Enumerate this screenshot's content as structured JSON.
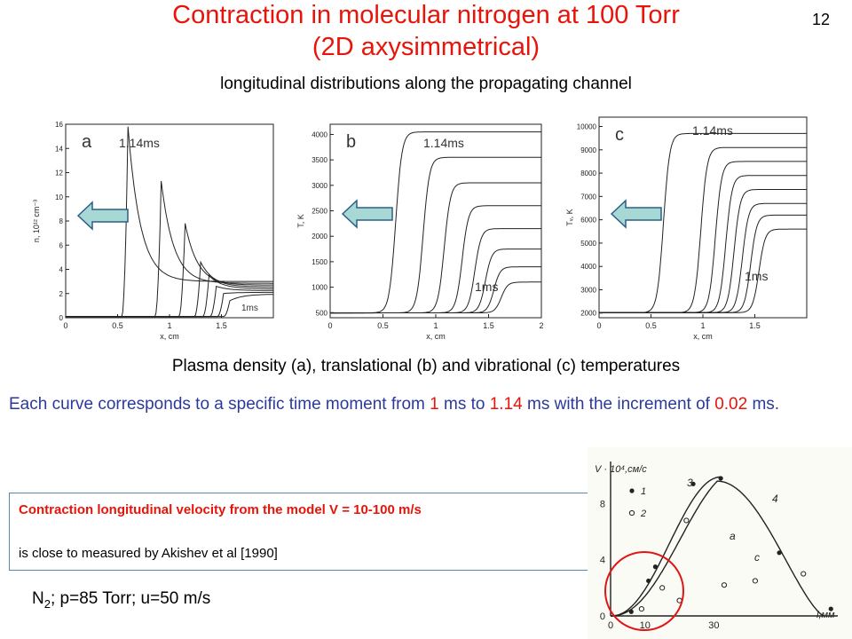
{
  "header": {
    "title_line1": "Contraction in molecular nitrogen at 100 Torr",
    "title_line2": "(2D axysimmetrical)",
    "subtitle": "longitudinal distributions along the propagating channel",
    "slide_number": "12"
  },
  "caption": "Plasma density (a), translational (b) and vibrational (c) temperatures",
  "description": {
    "part1": "Each curve corresponds to a specific time moment from ",
    "t_start": "1",
    "part2": " ms to ",
    "t_end": "1.14",
    "part3": " ms with the increment of ",
    "increment": "0.02",
    "part4": " ms."
  },
  "note_box": {
    "line1": "Contraction longitudinal velocity from the model V = 10-100 m/s",
    "line2": "is close to measured by Akishev et al [1990]"
  },
  "conditions": {
    "species": "N",
    "subscript": "2",
    "rest": "; p=85 Torr; u=50 m/s"
  },
  "chart_data": [
    {
      "type": "line",
      "panel_label": "a",
      "ylabel": "n, 10¹² cm⁻³",
      "xlabel": "x, cm",
      "xlim": [
        0,
        2
      ],
      "ylim": [
        0,
        16
      ],
      "x_ticks": [
        "0",
        "0.5",
        "1",
        "1.5"
      ],
      "y_ticks": [
        "0",
        "2",
        "4",
        "6",
        "8",
        "10",
        "12",
        "14",
        "16"
      ],
      "annotations": [
        "1.14ms",
        "1ms"
      ],
      "series_peaks": [
        {
          "x": 0.6,
          "y": 15.8
        },
        {
          "x": 0.92,
          "y": 11.3
        },
        {
          "x": 1.15,
          "y": 7.8
        },
        {
          "x": 1.3,
          "y": 4.6
        },
        {
          "x": 1.38,
          "y": 3.5
        },
        {
          "x": 1.45,
          "y": 2.6
        },
        {
          "x": 1.52,
          "y": 2.0
        },
        {
          "x": 1.58,
          "y": 1.4
        }
      ]
    },
    {
      "type": "line",
      "panel_label": "b",
      "ylabel": "T, K",
      "xlabel": "x, cm",
      "xlim": [
        0,
        2
      ],
      "ylim": [
        400,
        4200
      ],
      "x_ticks": [
        "0",
        "0.5",
        "1",
        "1.5",
        "2"
      ],
      "y_ticks": [
        "500",
        "1000",
        "1500",
        "2000",
        "2500",
        "3000",
        "3500",
        "4000"
      ],
      "annotations": [
        "1.14ms",
        "1ms"
      ],
      "series_fronts": [
        {
          "x": 0.62,
          "plateau": 4050
        },
        {
          "x": 0.88,
          "plateau": 3550
        },
        {
          "x": 1.08,
          "plateau": 3050
        },
        {
          "x": 1.25,
          "plateau": 2600
        },
        {
          "x": 1.37,
          "plateau": 2150
        },
        {
          "x": 1.47,
          "plateau": 1750
        },
        {
          "x": 1.55,
          "plateau": 1400
        },
        {
          "x": 1.62,
          "plateau": 1100
        }
      ]
    },
    {
      "type": "line",
      "panel_label": "c",
      "ylabel": "Tᵥ, K",
      "xlabel": "x, cm",
      "xlim": [
        0,
        2
      ],
      "ylim": [
        1800,
        10400
      ],
      "x_ticks": [
        "0",
        "0.5",
        "1",
        "1.5"
      ],
      "y_ticks": [
        "2000",
        "3000",
        "4000",
        "5000",
        "6000",
        "7000",
        "8000",
        "9000",
        "10000"
      ],
      "annotations": [
        "1.14ms",
        "1ms"
      ],
      "series_fronts": [
        {
          "x": 0.62,
          "plateau": 9700
        },
        {
          "x": 0.98,
          "plateau": 9100
        },
        {
          "x": 1.12,
          "plateau": 8500
        },
        {
          "x": 1.22,
          "plateau": 7900
        },
        {
          "x": 1.3,
          "plateau": 7300
        },
        {
          "x": 1.38,
          "plateau": 6700
        },
        {
          "x": 1.46,
          "plateau": 6200
        },
        {
          "x": 1.54,
          "plateau": 5600
        }
      ]
    },
    {
      "type": "scatter",
      "ylabel": "V · 10⁴,см/с",
      "xlabel": "l,мм",
      "x_ticks": [
        "0",
        "10",
        "30"
      ],
      "y_ticks": [
        "0",
        "4",
        "8"
      ],
      "legend": [
        "1",
        "2"
      ],
      "curve_labels": [
        "3",
        "4",
        "a",
        "c"
      ],
      "points_filled": [
        [
          6,
          0.3
        ],
        [
          11,
          2.5
        ],
        [
          13,
          3.5
        ],
        [
          24,
          9.4
        ],
        [
          32,
          9.8
        ],
        [
          49,
          4.5
        ],
        [
          64,
          0.5
        ]
      ],
      "points_open": [
        [
          9,
          0.5
        ],
        [
          15,
          2.0
        ],
        [
          20,
          1.1
        ],
        [
          33,
          2.2
        ],
        [
          42,
          2.5
        ],
        [
          56,
          3.0
        ],
        [
          22,
          6.8
        ]
      ]
    }
  ]
}
